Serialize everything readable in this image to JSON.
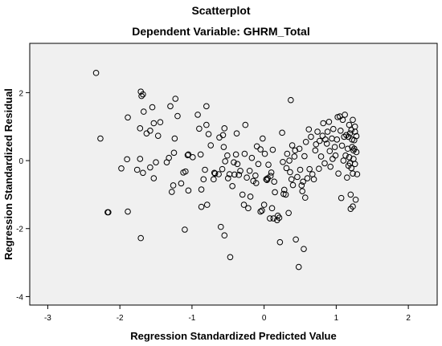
{
  "chart_data": {
    "type": "scatter",
    "title": "Scatterplot",
    "subtitle": "Dependent Variable: GHRM_Total",
    "xlabel": "Regression Standardized Predicted Value",
    "ylabel": "Regression Standardized Residual",
    "xlim": [
      -3.25,
      2.4
    ],
    "ylim": [
      -4.25,
      3.45
    ],
    "xticks": [
      -3,
      -2,
      -1,
      0,
      1,
      2
    ],
    "yticks": [
      -4,
      -2,
      0,
      2
    ],
    "grid": false,
    "marker": "open-circle",
    "colors": {
      "plot_bg": "#f0f0f0",
      "marker": "#000000",
      "frame": "#000000"
    },
    "points": [
      [
        -2.33,
        2.58
      ],
      [
        -2.27,
        0.65
      ],
      [
        -2.17,
        -1.52
      ],
      [
        -2.16,
        -1.52
      ],
      [
        -1.98,
        -0.23
      ],
      [
        -1.9,
        0.04
      ],
      [
        -1.89,
        -1.5
      ],
      [
        -1.89,
        1.27
      ],
      [
        -1.76,
        -0.27
      ],
      [
        -1.71,
        2.03
      ],
      [
        -1.7,
        1.9
      ],
      [
        -1.68,
        1.95
      ],
      [
        -1.72,
        0.95
      ],
      [
        -1.72,
        0.05
      ],
      [
        -1.71,
        -2.28
      ],
      [
        -1.68,
        -0.36
      ],
      [
        -1.67,
        1.44
      ],
      [
        -1.63,
        0.8
      ],
      [
        -1.58,
        -0.2
      ],
      [
        -1.58,
        0.88
      ],
      [
        -1.55,
        1.57
      ],
      [
        -1.53,
        -0.52
      ],
      [
        -1.53,
        1.1
      ],
      [
        -1.5,
        -0.05
      ],
      [
        -1.47,
        0.73
      ],
      [
        -1.44,
        1.13
      ],
      [
        -1.35,
        -0.05
      ],
      [
        -1.32,
        0.08
      ],
      [
        -1.3,
        1.6
      ],
      [
        -1.28,
        -0.92
      ],
      [
        -1.26,
        -0.73
      ],
      [
        -1.25,
        0.23
      ],
      [
        -1.24,
        0.65
      ],
      [
        -1.23,
        1.82
      ],
      [
        -1.2,
        1.31
      ],
      [
        -1.15,
        -0.67
      ],
      [
        -1.12,
        -0.35
      ],
      [
        -1.1,
        -2.03
      ],
      [
        -1.09,
        -0.32
      ],
      [
        -1.06,
        0.16
      ],
      [
        -1.05,
        -0.88
      ],
      [
        -1.05,
        0.18
      ],
      [
        -0.99,
        0.1
      ],
      [
        -0.92,
        1.35
      ],
      [
        -0.9,
        0.94
      ],
      [
        -0.88,
        0.18
      ],
      [
        -0.87,
        -1.36
      ],
      [
        -0.87,
        -0.85
      ],
      [
        -0.84,
        -0.55
      ],
      [
        -0.82,
        -0.27
      ],
      [
        -0.8,
        1.05
      ],
      [
        -0.8,
        1.6
      ],
      [
        -0.79,
        -1.3
      ],
      [
        -0.77,
        0.78
      ],
      [
        -0.74,
        0.45
      ],
      [
        -0.7,
        -0.55
      ],
      [
        -0.69,
        -0.36
      ],
      [
        -0.68,
        -0.38
      ],
      [
        -0.63,
        -0.4
      ],
      [
        -0.62,
        0.68
      ],
      [
        -0.6,
        -1.95
      ],
      [
        -0.58,
        -0.25
      ],
      [
        -0.57,
        0.75
      ],
      [
        -0.56,
        0.4
      ],
      [
        -0.55,
        0.95
      ],
      [
        -0.55,
        -2.2
      ],
      [
        -0.54,
        -0.02
      ],
      [
        -0.51,
        0.15
      ],
      [
        -0.5,
        -0.52
      ],
      [
        -0.48,
        -0.4
      ],
      [
        -0.47,
        -2.84
      ],
      [
        -0.44,
        -0.75
      ],
      [
        -0.42,
        -0.05
      ],
      [
        -0.41,
        -0.41
      ],
      [
        -0.39,
        0.18
      ],
      [
        -0.38,
        0.8
      ],
      [
        -0.37,
        -0.1
      ],
      [
        -0.35,
        -0.42
      ],
      [
        -0.33,
        -0.3
      ],
      [
        -0.3,
        -1.0
      ],
      [
        -0.28,
        -1.3
      ],
      [
        -0.27,
        0.2
      ],
      [
        -0.26,
        1.05
      ],
      [
        -0.24,
        -0.5
      ],
      [
        -0.22,
        -1.4
      ],
      [
        -0.2,
        -0.3
      ],
      [
        -0.19,
        -1.06
      ],
      [
        -0.17,
        0.08
      ],
      [
        -0.15,
        -0.6
      ],
      [
        -0.12,
        -0.44
      ],
      [
        -0.11,
        -0.66
      ],
      [
        -0.1,
        0.42
      ],
      [
        -0.08,
        -0.1
      ],
      [
        -0.05,
        0.33
      ],
      [
        -0.05,
        -1.5
      ],
      [
        -0.03,
        -1.47
      ],
      [
        -0.02,
        0.65
      ],
      [
        0.0,
        -1.3
      ],
      [
        0.01,
        0.2
      ],
      [
        0.03,
        -0.55
      ],
      [
        0.04,
        -0.57
      ],
      [
        0.05,
        -0.52
      ],
      [
        0.06,
        -0.12
      ],
      [
        0.08,
        -1.7
      ],
      [
        0.09,
        -0.45
      ],
      [
        0.1,
        -0.35
      ],
      [
        0.11,
        -1.4
      ],
      [
        0.12,
        0.32
      ],
      [
        0.13,
        -1.7
      ],
      [
        0.14,
        -0.62
      ],
      [
        0.15,
        -0.93
      ],
      [
        0.18,
        -1.75
      ],
      [
        0.19,
        -1.62
      ],
      [
        0.21,
        -1.68
      ],
      [
        0.22,
        -2.4
      ],
      [
        0.25,
        0.82
      ],
      [
        0.26,
        -0.04
      ],
      [
        0.27,
        -0.98
      ],
      [
        0.28,
        -0.86
      ],
      [
        0.3,
        -1.0
      ],
      [
        0.31,
        -0.22
      ],
      [
        0.32,
        0.2
      ],
      [
        0.34,
        -1.54
      ],
      [
        0.35,
        0.0
      ],
      [
        0.36,
        -0.34
      ],
      [
        0.37,
        1.78
      ],
      [
        0.38,
        -0.55
      ],
      [
        0.39,
        0.45
      ],
      [
        0.4,
        -0.72
      ],
      [
        0.42,
        0.12
      ],
      [
        0.43,
        0.3
      ],
      [
        0.44,
        -2.32
      ],
      [
        0.46,
        -0.48
      ],
      [
        0.48,
        -3.13
      ],
      [
        0.49,
        0.35
      ],
      [
        0.5,
        -0.27
      ],
      [
        0.52,
        -0.73
      ],
      [
        0.53,
        -0.9
      ],
      [
        0.54,
        -0.62
      ],
      [
        0.55,
        -2.6
      ],
      [
        0.56,
        0.13
      ],
      [
        0.57,
        -1.09
      ],
      [
        0.58,
        0.55
      ],
      [
        0.6,
        -0.52
      ],
      [
        0.62,
        0.92
      ],
      [
        0.63,
        -0.25
      ],
      [
        0.65,
        0.7
      ],
      [
        0.67,
        -0.4
      ],
      [
        0.69,
        -0.55
      ],
      [
        0.71,
        0.3
      ],
      [
        0.72,
        0.48
      ],
      [
        0.74,
        0.85
      ],
      [
        0.76,
        -0.24
      ],
      [
        0.77,
        0.58
      ],
      [
        0.79,
        0.12
      ],
      [
        0.81,
        0.73
      ],
      [
        0.82,
        1.1
      ],
      [
        0.84,
        -0.08
      ],
      [
        0.85,
        0.62
      ],
      [
        0.87,
        0.5
      ],
      [
        0.88,
        0.85
      ],
      [
        0.9,
        1.14
      ],
      [
        0.91,
        0.28
      ],
      [
        0.92,
        -0.18
      ],
      [
        0.94,
        0.65
      ],
      [
        0.95,
        0.05
      ],
      [
        0.96,
        0.93
      ],
      [
        0.98,
        0.4
      ],
      [
        0.99,
        0.15
      ],
      [
        1.01,
        0.62
      ],
      [
        1.02,
        1.28
      ],
      [
        1.03,
        -0.38
      ],
      [
        1.05,
        1.3
      ],
      [
        1.06,
        0.88
      ],
      [
        1.07,
        -1.1
      ],
      [
        1.08,
        0.44
      ],
      [
        1.09,
        1.2
      ],
      [
        1.1,
        0.0
      ],
      [
        1.11,
        0.7
      ],
      [
        1.12,
        1.35
      ],
      [
        1.13,
        0.15
      ],
      [
        1.14,
        0.75
      ],
      [
        1.15,
        -0.5
      ],
      [
        1.16,
        0.35
      ],
      [
        1.17,
        0.7
      ],
      [
        1.18,
        1.05
      ],
      [
        1.19,
        -0.08
      ],
      [
        1.19,
        0.8
      ],
      [
        1.2,
        -1.42
      ],
      [
        1.2,
        -1.0
      ],
      [
        1.21,
        -0.22
      ],
      [
        1.22,
        0.4
      ],
      [
        1.22,
        0.62
      ],
      [
        1.23,
        1.2
      ],
      [
        1.23,
        -0.38
      ],
      [
        1.24,
        0.3
      ],
      [
        1.24,
        0.05
      ],
      [
        1.25,
        0.6
      ],
      [
        1.26,
        -0.1
      ],
      [
        1.26,
        0.85
      ],
      [
        1.27,
        -1.15
      ],
      [
        1.28,
        0.25
      ],
      [
        1.28,
        0.72
      ],
      [
        1.29,
        -0.4
      ],
      [
        1.25,
        0.35
      ],
      [
        1.21,
        0.9
      ],
      [
        1.17,
        -0.15
      ],
      [
        1.23,
        -1.35
      ],
      [
        1.18,
        0.1
      ],
      [
        1.26,
        1.0
      ]
    ]
  }
}
